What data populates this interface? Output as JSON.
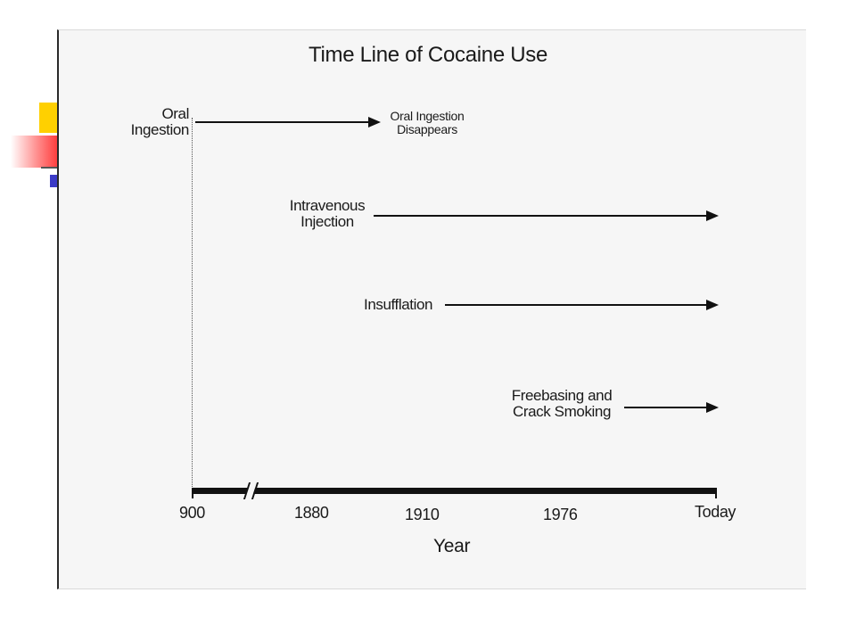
{
  "diagram": {
    "title": "Time Line of Cocaine Use",
    "events": [
      {
        "label_lines": [
          "Oral",
          "Ingestion"
        ],
        "end_label_lines": [
          "Oral Ingestion",
          "Disappears"
        ]
      },
      {
        "label_lines": [
          "Intravenous",
          "Injection"
        ]
      },
      {
        "label_lines": [
          "Insufflation"
        ]
      },
      {
        "label_lines": [
          "Freebasing and",
          "Crack Smoking"
        ]
      }
    ],
    "axis": {
      "ticks": [
        "900",
        "1880",
        "1910",
        "1976",
        "Today"
      ],
      "title": "Year"
    }
  }
}
